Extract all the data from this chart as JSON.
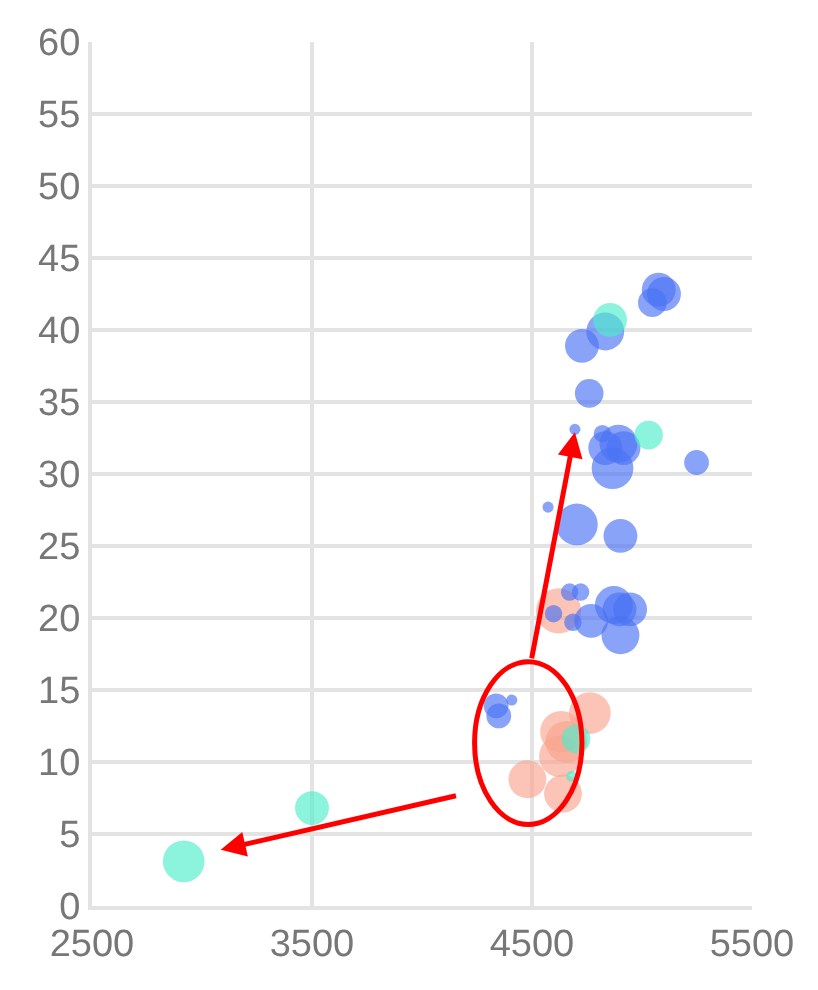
{
  "chart_data": {
    "type": "bubble",
    "xlim": [
      2500,
      5500
    ],
    "xticks": [
      2500,
      3500,
      4500,
      5500
    ],
    "ylim": [
      0,
      60
    ],
    "yticks": [
      0,
      5,
      10,
      15,
      20,
      25,
      30,
      35,
      40,
      45,
      50,
      55,
      60
    ],
    "grid": true,
    "series": [
      {
        "color": "#f9a48f",
        "x": [
          4621,
          4763,
          4632,
          4656,
          4627,
          4479,
          4641
        ],
        "values": [
          20.5,
          13.4,
          12.1,
          11.4,
          10.4,
          8.8,
          7.8
        ],
        "sizes": [
          1,
          0.85,
          0.85,
          0.85,
          0.85,
          0.7,
          0.7
        ]
      },
      {
        "color": "#4a72f5",
        "x": [
          5076,
          5100,
          5047,
          4833,
          4727,
          4760,
          4695,
          4820,
          4893,
          4833,
          4916,
          4866,
          5248,
          4573,
          4704,
          4902,
          4671,
          4721,
          4872,
          4898,
          4946,
          4598,
          4769,
          4686,
          4902,
          4337,
          4349,
          4408
        ],
        "values": [
          42.8,
          42.5,
          41.9,
          39.9,
          38.9,
          35.6,
          33.1,
          32.8,
          32.1,
          31.8,
          31.8,
          30.4,
          30.8,
          27.7,
          26.5,
          25.7,
          21.8,
          21.8,
          20.9,
          20.6,
          20.6,
          20.3,
          19.8,
          19.7,
          18.8,
          13.9,
          13.2,
          14.3
        ],
        "sizes": [
          0.56,
          0.56,
          0.4,
          0.7,
          0.56,
          0.4,
          0.06,
          0.15,
          0.7,
          0.56,
          0.56,
          0.85,
          0.3,
          0.06,
          0.85,
          0.56,
          0.15,
          0.15,
          0.7,
          0.56,
          0.56,
          0.15,
          0.56,
          0.15,
          0.7,
          0.3,
          0.3,
          0.06
        ]
      },
      {
        "color": "#4eeccb",
        "x": [
          2917,
          3500,
          5030,
          4855,
          4700,
          4680
        ],
        "values": [
          3.1,
          6.8,
          32.7,
          40.7,
          11.6,
          9.0
        ],
        "sizes": [
          0.85,
          0.56,
          0.4,
          0.56,
          0.4,
          0.06
        ]
      }
    ]
  }
}
